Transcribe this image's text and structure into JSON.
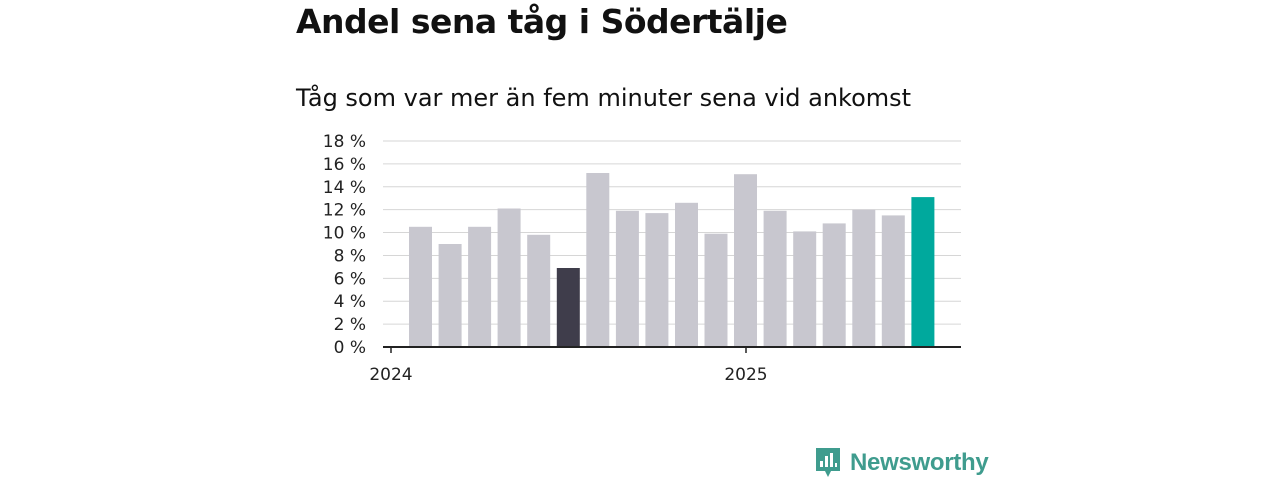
{
  "header": {
    "title": "Andel sena tåg i Södertälje",
    "subtitle": "Tåg som var mer än fem minuter sena vid ankomst"
  },
  "brand": {
    "name": "Newsworthy"
  },
  "colors": {
    "bar_default": "#c8c7cf",
    "bar_low": "#3f3d4b",
    "bar_latest": "#00a99d",
    "grid": "#d6d6d6",
    "axis": "#222222",
    "brand": "#3f9c8e"
  },
  "chart_data": {
    "type": "bar",
    "x_tick_labels": [
      "2024",
      "2025"
    ],
    "values": [
      10.5,
      9.0,
      10.5,
      12.1,
      9.8,
      6.9,
      15.2,
      11.9,
      11.7,
      12.6,
      9.9,
      15.1,
      11.9,
      10.1,
      10.8,
      12.0,
      11.5,
      13.1
    ],
    "highlight": {
      "low_index": 5,
      "latest_index": 17
    },
    "ylim": [
      0,
      18
    ],
    "y_ticks": [
      0,
      2,
      4,
      6,
      8,
      10,
      12,
      14,
      16,
      18
    ],
    "y_tick_labels": [
      "0 %",
      "2 %",
      "4 %",
      "6 %",
      "8 %",
      "10 %",
      "12 %",
      "14 %",
      "16 %",
      "18 %"
    ],
    "grid": true,
    "legend": "none"
  }
}
